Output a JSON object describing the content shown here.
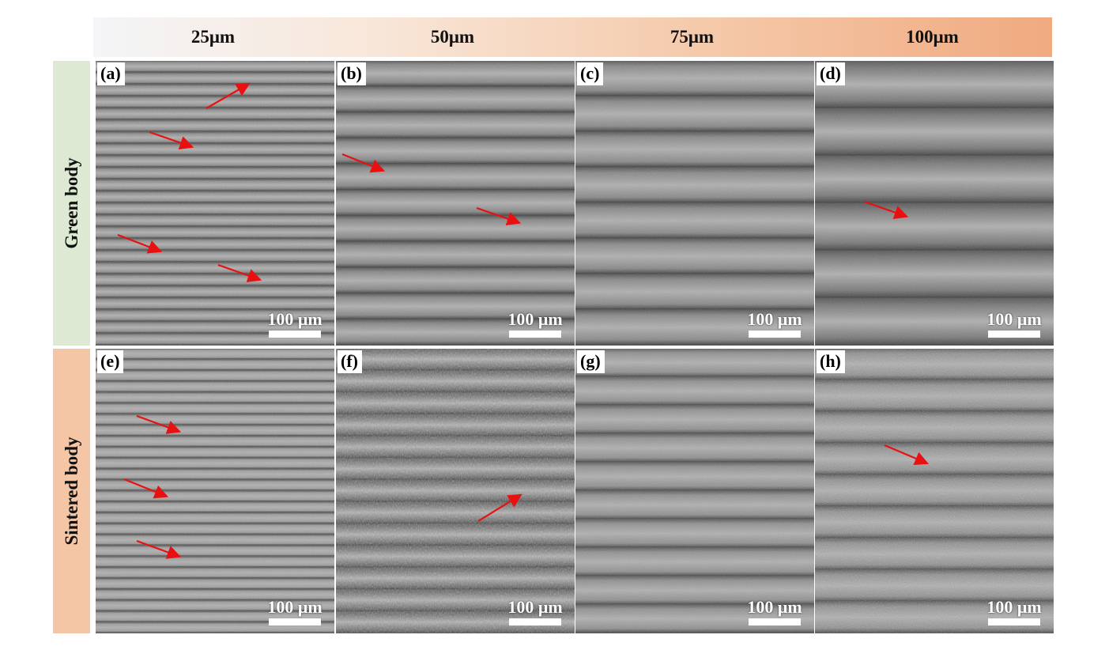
{
  "columns": [
    "25μm",
    "50μm",
    "75μm",
    "100μm"
  ],
  "rows": [
    "Green body",
    "Sintered body"
  ],
  "scale_bar": "100 μm",
  "arrow_color": "#e81010",
  "panels": [
    {
      "tag": "(a)",
      "row": 0,
      "col": 0,
      "band_count": 24,
      "tone": "#8c8c8c",
      "roughness": "medium"
    },
    {
      "tag": "(b)",
      "row": 0,
      "col": 1,
      "band_count": 11,
      "tone": "#888888",
      "roughness": "smooth"
    },
    {
      "tag": "(c)",
      "row": 0,
      "col": 2,
      "band_count": 8,
      "tone": "#8a8a8a",
      "roughness": "smooth"
    },
    {
      "tag": "(d)",
      "row": 0,
      "col": 3,
      "band_count": 6,
      "tone": "#7a7a7a",
      "roughness": "smooth"
    },
    {
      "tag": "(e)",
      "row": 1,
      "col": 0,
      "band_count": 26,
      "tone": "#9a9a9a",
      "roughness": "fine"
    },
    {
      "tag": "(f)",
      "row": 1,
      "col": 1,
      "band_count": 13,
      "tone": "#6e6e6e",
      "roughness": "rough"
    },
    {
      "tag": "(g)",
      "row": 1,
      "col": 2,
      "band_count": 10,
      "tone": "#8e8e8e",
      "roughness": "medium"
    },
    {
      "tag": "(h)",
      "row": 1,
      "col": 3,
      "band_count": 9,
      "tone": "#8d8d8d",
      "roughness": "grainy"
    }
  ]
}
